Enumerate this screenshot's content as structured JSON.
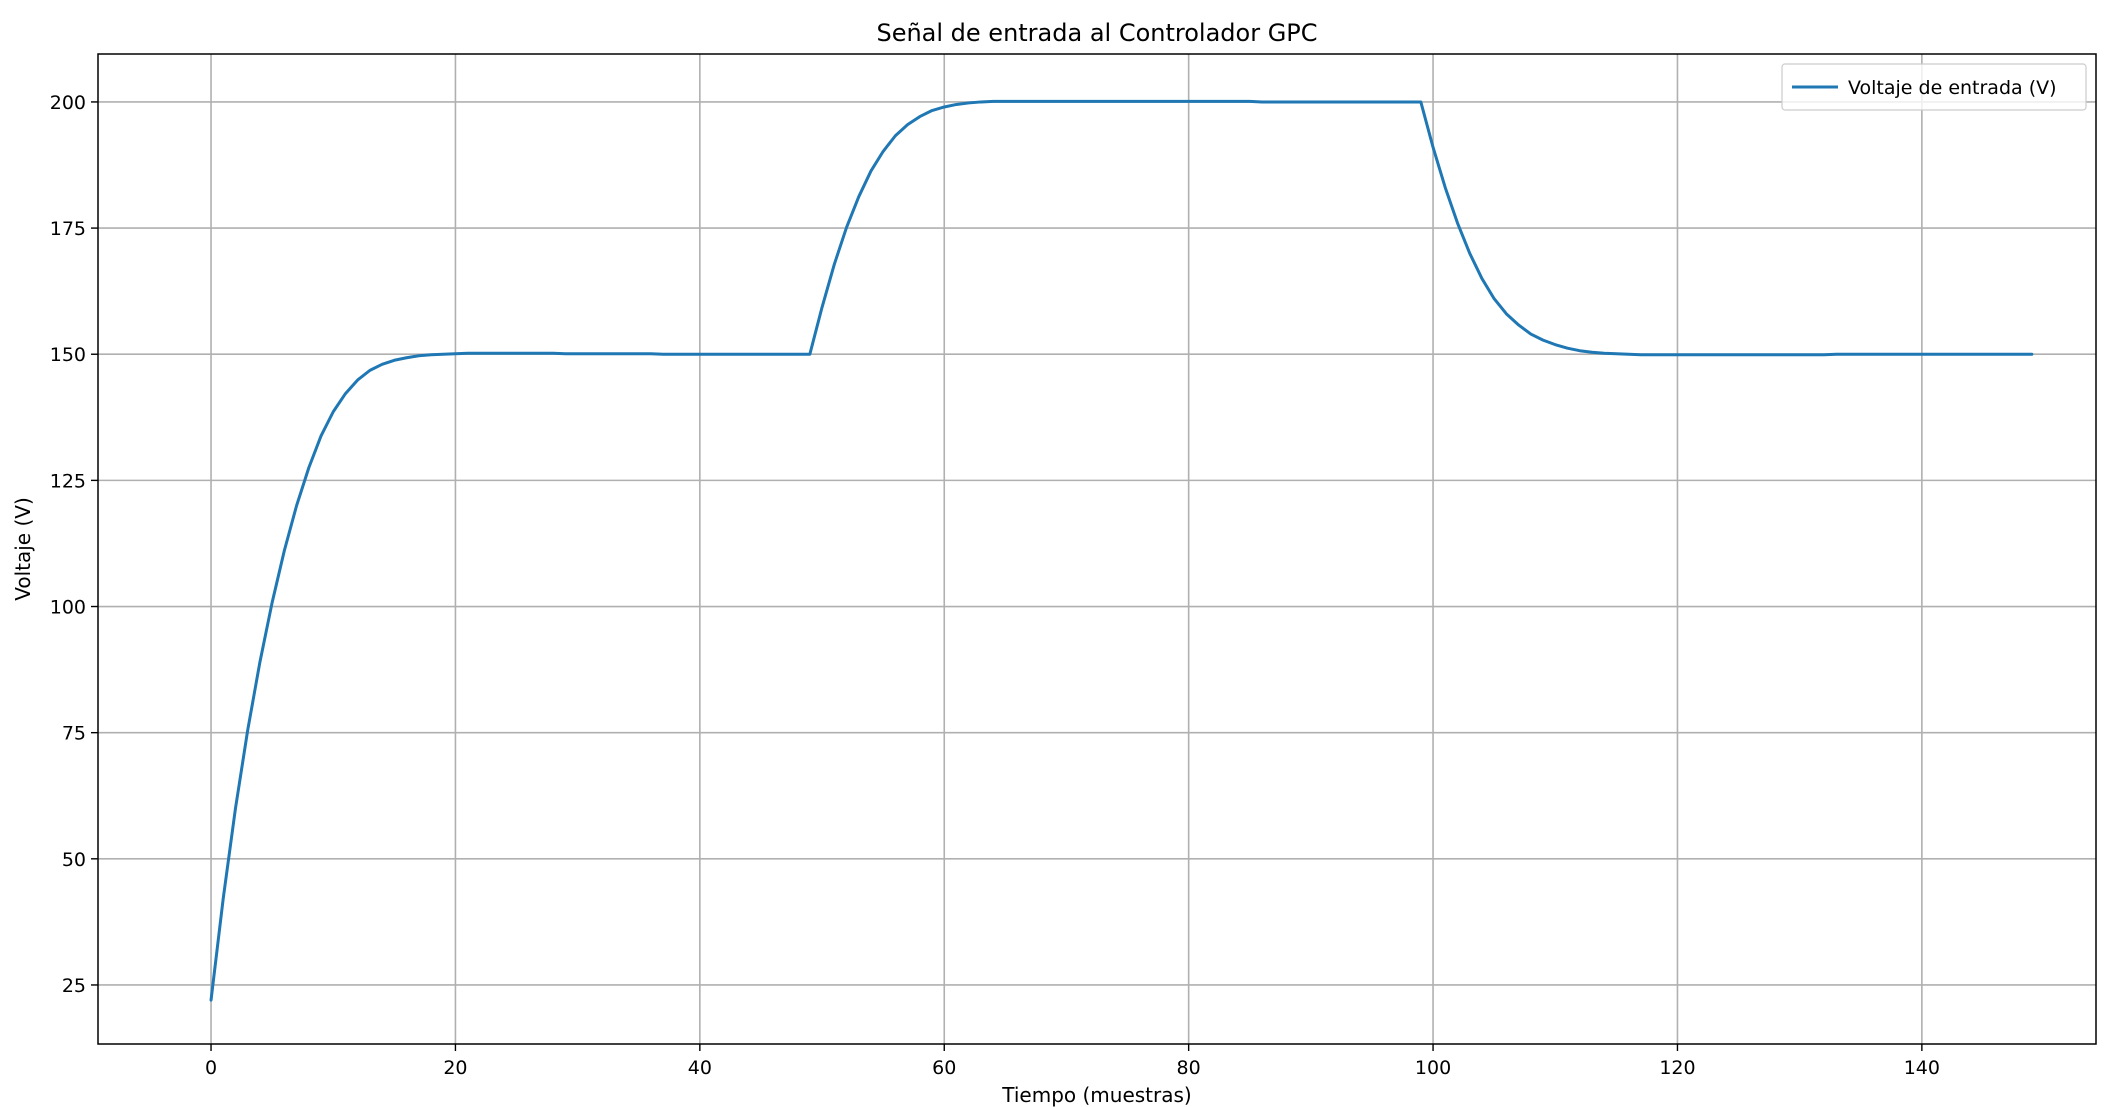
{
  "chart_data": {
    "type": "line",
    "title": "Señal de entrada al Controlador GPC",
    "xlabel": "Tiempo (muestras)",
    "ylabel": "Voltaje (V)",
    "xlim": [
      -9.25,
      154.25
    ],
    "ylim": [
      13.3,
      209.5
    ],
    "xticks": [
      0,
      20,
      40,
      60,
      80,
      100,
      120,
      140
    ],
    "yticks": [
      25,
      50,
      75,
      100,
      125,
      150,
      175,
      200
    ],
    "grid": true,
    "legend_position": "top-right",
    "series": [
      {
        "name": "Voltaje de entrada (V)",
        "color": "#1f77b4",
        "x": [
          0,
          1,
          2,
          3,
          4,
          5,
          6,
          7,
          8,
          9,
          10,
          11,
          12,
          13,
          14,
          15,
          16,
          17,
          18,
          19,
          20,
          21,
          22,
          23,
          24,
          25,
          26,
          27,
          28,
          29,
          30,
          31,
          32,
          33,
          34,
          35,
          36,
          37,
          38,
          39,
          40,
          41,
          42,
          43,
          44,
          45,
          46,
          47,
          48,
          49,
          50,
          51,
          52,
          53,
          54,
          55,
          56,
          57,
          58,
          59,
          60,
          61,
          62,
          63,
          64,
          65,
          66,
          67,
          68,
          69,
          70,
          71,
          72,
          73,
          74,
          75,
          76,
          77,
          78,
          79,
          80,
          81,
          82,
          83,
          84,
          85,
          86,
          87,
          88,
          89,
          90,
          91,
          92,
          93,
          94,
          95,
          96,
          97,
          98,
          99,
          100,
          101,
          102,
          103,
          104,
          105,
          106,
          107,
          108,
          109,
          110,
          111,
          112,
          113,
          114,
          115,
          116,
          117,
          118,
          119,
          120,
          121,
          122,
          123,
          124,
          125,
          126,
          127,
          128,
          129,
          130,
          131,
          132,
          133,
          134,
          135,
          136,
          137,
          138,
          139,
          140,
          141,
          142,
          143,
          144,
          145,
          146,
          147,
          148,
          149
        ],
        "y": [
          22.0,
          42.2,
          60.0,
          75.5,
          89.0,
          100.8,
          111.1,
          120.0,
          127.5,
          133.8,
          138.6,
          142.2,
          144.9,
          146.8,
          148.0,
          148.8,
          149.3,
          149.7,
          149.9,
          150.0,
          150.1,
          150.2,
          150.2,
          150.2,
          150.2,
          150.2,
          150.2,
          150.2,
          150.2,
          150.1,
          150.1,
          150.1,
          150.1,
          150.1,
          150.1,
          150.1,
          150.1,
          150.0,
          150.0,
          150.0,
          150.0,
          150.0,
          150.0,
          150.0,
          150.0,
          150.0,
          150.0,
          150.0,
          150.0,
          150.0,
          159.3,
          167.8,
          175.1,
          181.2,
          186.3,
          190.2,
          193.3,
          195.5,
          197.1,
          198.3,
          199.0,
          199.5,
          199.8,
          200.0,
          200.1,
          200.1,
          200.1,
          200.1,
          200.1,
          200.1,
          200.1,
          200.1,
          200.1,
          200.1,
          200.1,
          200.1,
          200.1,
          200.1,
          200.1,
          200.1,
          200.1,
          200.1,
          200.1,
          200.1,
          200.1,
          200.1,
          200.0,
          200.0,
          200.0,
          200.0,
          200.0,
          200.0,
          200.0,
          200.0,
          200.0,
          200.0,
          200.0,
          200.0,
          200.0,
          200.0,
          191.0,
          183.0,
          176.0,
          170.0,
          165.0,
          161.0,
          158.0,
          155.8,
          154.0,
          152.8,
          151.9,
          151.2,
          150.7,
          150.4,
          150.2,
          150.1,
          150.0,
          149.9,
          149.9,
          149.9,
          149.9,
          149.9,
          149.9,
          149.9,
          149.9,
          149.9,
          149.9,
          149.9,
          149.9,
          149.9,
          149.9,
          149.9,
          149.9,
          150.0,
          150.0,
          150.0,
          150.0,
          150.0,
          150.0,
          150.0,
          150.0,
          150.0,
          150.0,
          150.0,
          150.0,
          150.0,
          150.0,
          150.0,
          150.0,
          150.0
        ]
      }
    ]
  }
}
